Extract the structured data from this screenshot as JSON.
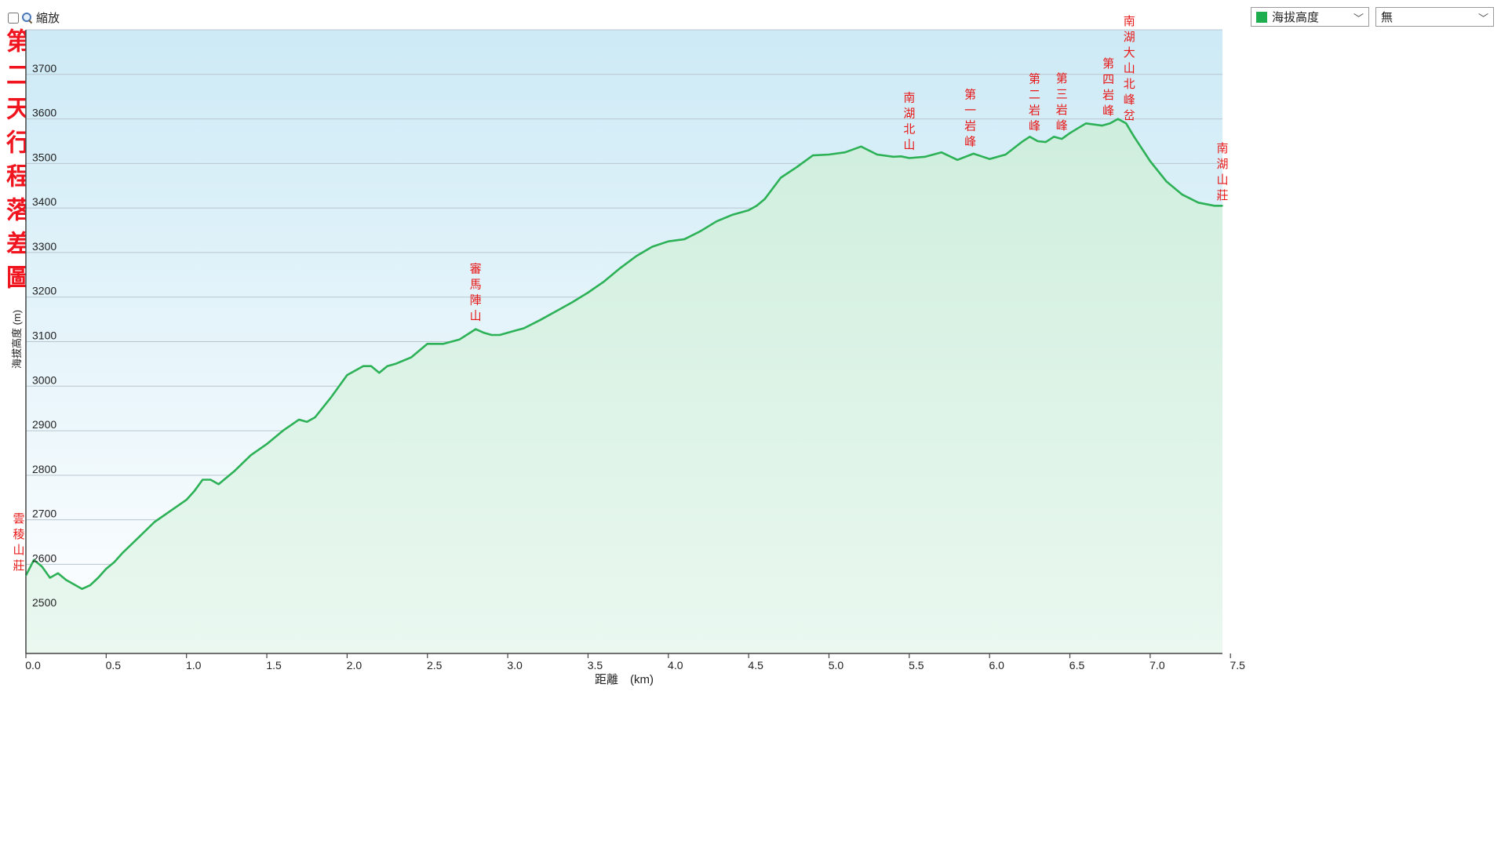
{
  "toolbar": {
    "zoom_label": "縮放",
    "zoom_checked": false,
    "series_select": {
      "value": "海拔高度",
      "color": "#1fae4f"
    },
    "second_select": {
      "value": "無"
    }
  },
  "big_title": "第二天行程落差圖",
  "chart_data": {
    "type": "area",
    "xlabel": "距離　(km)",
    "ylabel": "海拔高度 (m)",
    "xlim": [
      0,
      7.45
    ],
    "ylim": [
      2400,
      3800
    ],
    "xticks": [
      0,
      0.5,
      1,
      1.5,
      2,
      2.5,
      3,
      3.5,
      4,
      4.5,
      5,
      5.5,
      6,
      6.5,
      7,
      7.5
    ],
    "xtick_labels": [
      "0.0",
      "0.5",
      "1.0",
      "1.5",
      "2.0",
      "2.5",
      "3.0",
      "3.5",
      "4.0",
      "4.5",
      "5.0",
      "5.5",
      "6.0",
      "6.5",
      "7.0",
      "7.5"
    ],
    "yticks": [
      2500,
      2600,
      2700,
      2800,
      2900,
      3000,
      3100,
      3200,
      3300,
      3400,
      3500,
      3600,
      3700
    ],
    "ytick_labels": [
      "2500",
      "2600",
      "2700",
      "2800",
      "2900",
      "3000",
      "3100",
      "3200",
      "3300",
      "3400",
      "3500",
      "3600",
      "3700"
    ],
    "grid": true,
    "line_color": "#2cb156",
    "series": [
      {
        "name": "海拔高度",
        "x": [
          0.0,
          0.05,
          0.1,
          0.15,
          0.2,
          0.25,
          0.3,
          0.35,
          0.4,
          0.45,
          0.5,
          0.55,
          0.6,
          0.7,
          0.8,
          0.9,
          1.0,
          1.05,
          1.1,
          1.15,
          1.2,
          1.3,
          1.4,
          1.5,
          1.6,
          1.7,
          1.75,
          1.8,
          1.9,
          2.0,
          2.1,
          2.15,
          2.2,
          2.25,
          2.3,
          2.4,
          2.5,
          2.6,
          2.7,
          2.8,
          2.85,
          2.9,
          2.95,
          3.0,
          3.05,
          3.1,
          3.2,
          3.3,
          3.4,
          3.5,
          3.6,
          3.7,
          3.8,
          3.9,
          4.0,
          4.1,
          4.2,
          4.3,
          4.4,
          4.5,
          4.55,
          4.6,
          4.7,
          4.8,
          4.9,
          5.0,
          5.1,
          5.2,
          5.3,
          5.4,
          5.45,
          5.5,
          5.6,
          5.7,
          5.8,
          5.9,
          6.0,
          6.1,
          6.2,
          6.25,
          6.3,
          6.35,
          6.4,
          6.45,
          6.5,
          6.6,
          6.7,
          6.75,
          6.8,
          6.85,
          6.9,
          7.0,
          7.1,
          7.2,
          7.3,
          7.4,
          7.45
        ],
        "y": [
          2575,
          2610,
          2595,
          2570,
          2580,
          2565,
          2555,
          2545,
          2553,
          2570,
          2590,
          2605,
          2625,
          2660,
          2695,
          2720,
          2745,
          2765,
          2790,
          2790,
          2780,
          2810,
          2845,
          2870,
          2900,
          2925,
          2920,
          2930,
          2975,
          3025,
          3045,
          3045,
          3030,
          3045,
          3050,
          3065,
          3095,
          3095,
          3105,
          3128,
          3120,
          3115,
          3115,
          3120,
          3125,
          3130,
          3148,
          3168,
          3188,
          3210,
          3235,
          3265,
          3292,
          3313,
          3325,
          3330,
          3348,
          3370,
          3385,
          3395,
          3405,
          3420,
          3468,
          3492,
          3518,
          3520,
          3525,
          3538,
          3520,
          3515,
          3516,
          3512,
          3515,
          3525,
          3508,
          3522,
          3510,
          3520,
          3548,
          3560,
          3550,
          3548,
          3560,
          3555,
          3568,
          3590,
          3585,
          3590,
          3600,
          3590,
          3560,
          3505,
          3460,
          3430,
          3412,
          3405,
          3405
        ]
      }
    ],
    "annotations": [
      {
        "text": "雲稜山莊",
        "x": 0.0
      },
      {
        "text": "審馬陣山",
        "x": 2.8
      },
      {
        "text": "南湖北山",
        "x": 5.5
      },
      {
        "text": "第一岩峰",
        "x": 5.88
      },
      {
        "text": "第二岩峰",
        "x": 6.28
      },
      {
        "text": "第三岩峰",
        "x": 6.45
      },
      {
        "text": "第四岩峰",
        "x": 6.74
      },
      {
        "text": "南湖大山北峰岔",
        "x": 6.87
      },
      {
        "text": "南湖山莊",
        "x": 7.45
      }
    ]
  }
}
